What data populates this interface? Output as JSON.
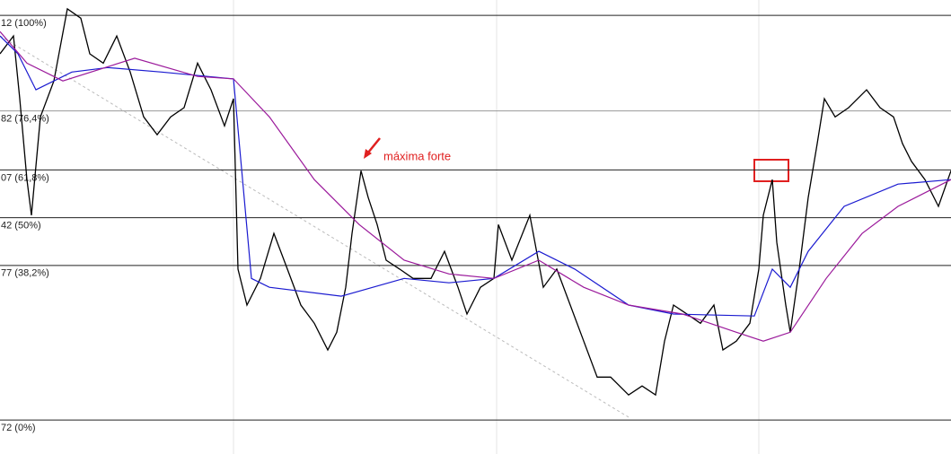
{
  "chart_data": {
    "type": "line",
    "annotation": "máxima forte",
    "xlim": [
      0,
      1059
    ],
    "ylim": [
      -8.4,
      103.8
    ],
    "yticks": [
      {
        "value": 100,
        "label": "12 (100%)"
      },
      {
        "value": 76.4,
        "label": "82 (76,4%)"
      },
      {
        "value": 61.8,
        "label": "07 (61,8%)"
      },
      {
        "value": 50,
        "label": "42 (50%)"
      },
      {
        "value": 38.2,
        "label": "77 (38,2%)"
      },
      {
        "value": 0,
        "label": "72 (0%)"
      }
    ],
    "grid": true,
    "series": [
      {
        "color": "#000000",
        "x": [
          0,
          15,
          22,
          30,
          35,
          45,
          60,
          75,
          90,
          100,
          115,
          130,
          145,
          160,
          175,
          190,
          205,
          220,
          235,
          250,
          260,
          265,
          275,
          290,
          305,
          320,
          335,
          350,
          365,
          375,
          385,
          392,
          402,
          410,
          420,
          430,
          445,
          460,
          480,
          495,
          510,
          520,
          535,
          550,
          555,
          570,
          590,
          605,
          620,
          635,
          650,
          665,
          680,
          700,
          715,
          730,
          740,
          750,
          765,
          780,
          795,
          805,
          820,
          835,
          845,
          850,
          860,
          865,
          875,
          880,
          890,
          900,
          910,
          918,
          930,
          945,
          965,
          980,
          995,
          1005,
          1015,
          1030,
          1045,
          1059
        ],
        "values": [
          90.5,
          94.9,
          79.4,
          59.4,
          50.6,
          74.9,
          83.8,
          101.6,
          99.3,
          90.5,
          88.2,
          94.9,
          86.0,
          74.9,
          70.5,
          74.9,
          77.2,
          88.2,
          81.6,
          72.7,
          79.4,
          37.3,
          28.4,
          35.0,
          46.1,
          37.3,
          28.4,
          23.9,
          17.3,
          21.7,
          32.8,
          46.1,
          61.6,
          55.0,
          48.3,
          39.5,
          37.3,
          35.0,
          35.0,
          41.7,
          32.8,
          26.2,
          32.8,
          35.0,
          48.3,
          39.5,
          50.6,
          32.8,
          37.3,
          28.4,
          19.5,
          10.6,
          10.6,
          6.2,
          8.4,
          6.2,
          19.5,
          28.4,
          26.2,
          23.9,
          28.4,
          17.3,
          19.5,
          23.9,
          37.3,
          50.6,
          59.4,
          43.9,
          28.4,
          21.7,
          37.3,
          55.0,
          68.3,
          79.4,
          74.9,
          77.2,
          81.6,
          77.2,
          74.9,
          68.3,
          63.9,
          59.4,
          52.8,
          61.6
        ]
      },
      {
        "color": "#1a1ad0",
        "x": [
          0,
          20,
          40,
          80,
          120,
          180,
          260,
          280,
          300,
          380,
          450,
          500,
          550,
          600,
          640,
          700,
          750,
          840,
          860,
          880,
          900,
          940,
          1000,
          1059
        ],
        "values": [
          94.9,
          90.5,
          81.6,
          86.0,
          87.1,
          86.0,
          84.3,
          35.0,
          32.8,
          30.6,
          35.0,
          33.9,
          35.0,
          41.7,
          37.3,
          28.4,
          26.2,
          25.7,
          37.3,
          32.8,
          41.7,
          52.8,
          58.3,
          59.4
        ]
      },
      {
        "color": "#9b1a9b",
        "x": [
          0,
          30,
          70,
          150,
          220,
          260,
          300,
          350,
          400,
          450,
          500,
          550,
          600,
          650,
          700,
          760,
          820,
          850,
          880,
          920,
          960,
          1000,
          1059
        ],
        "values": [
          96.0,
          88.2,
          83.8,
          89.4,
          84.9,
          84.3,
          74.9,
          59.4,
          48.3,
          39.5,
          36.1,
          35.0,
          39.5,
          32.8,
          28.4,
          26.2,
          21.7,
          19.5,
          21.7,
          35.0,
          46.1,
          52.8,
          59.4
        ]
      }
    ]
  }
}
